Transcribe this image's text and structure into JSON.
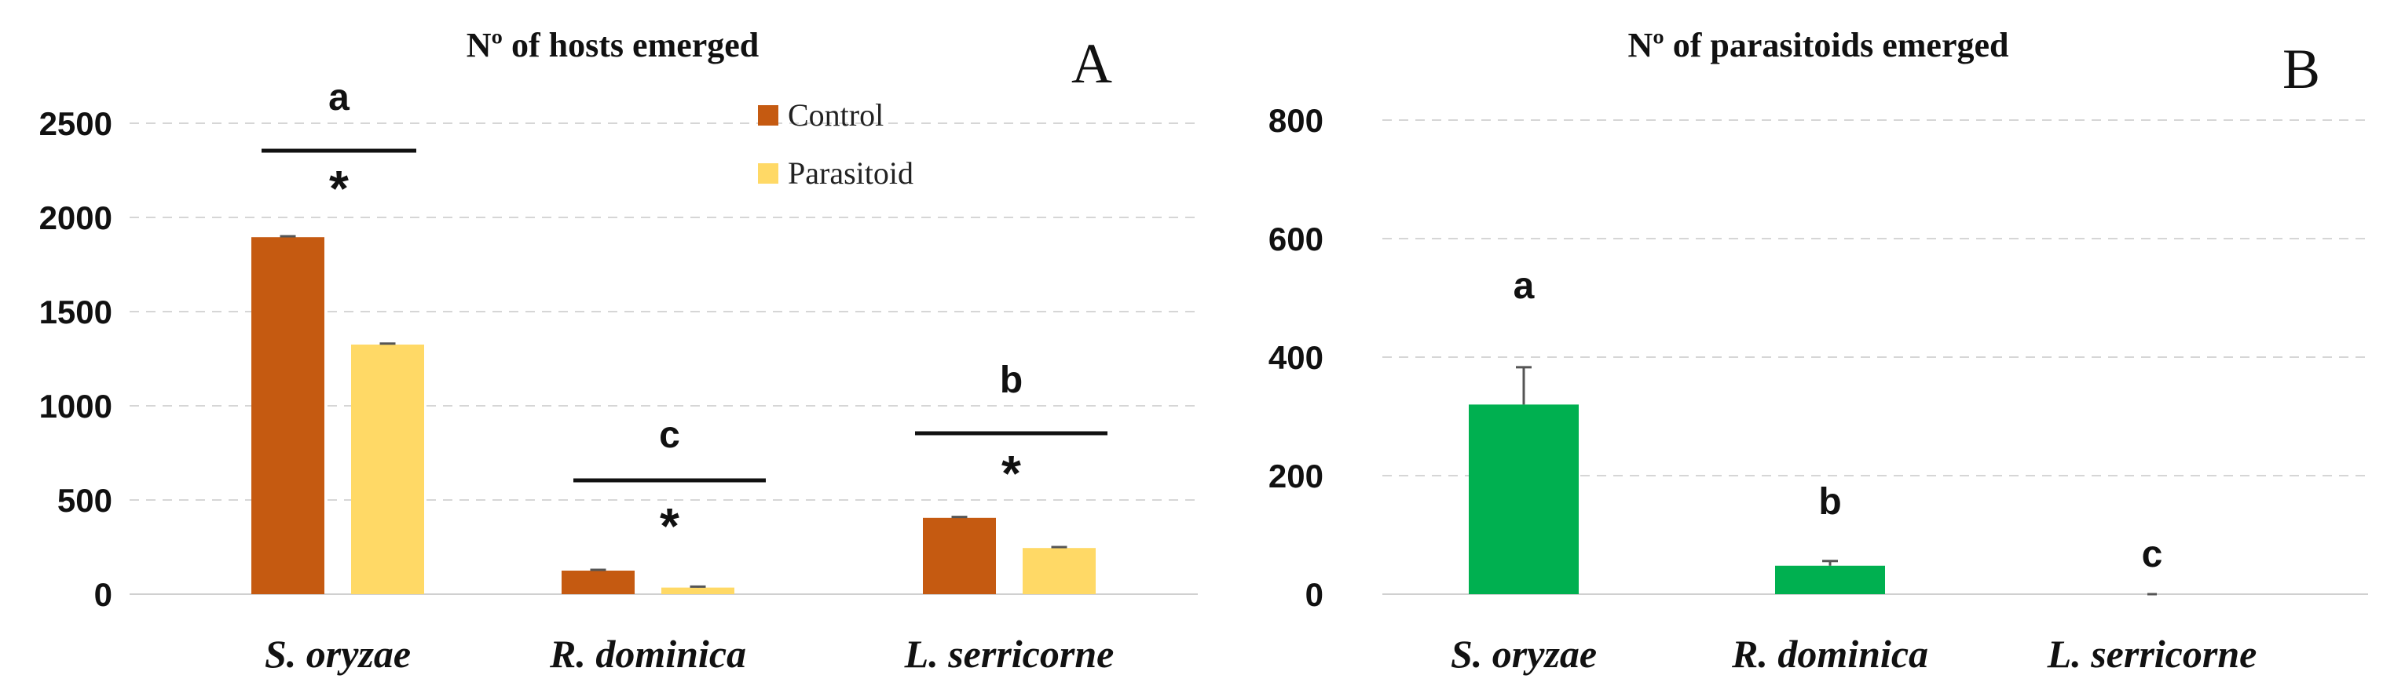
{
  "colors": {
    "control": "#C55A11",
    "parasitoid": "#FFD966",
    "emerged": "#00B050"
  },
  "chart_data": [
    {
      "type": "bar",
      "panel_label": "A",
      "title": "Nº of hosts emerged",
      "categories": [
        "S. oryzae",
        "R. dominica",
        "L. serricorne"
      ],
      "series": [
        {
          "name": "Control",
          "values": [
            1895,
            125,
            405
          ],
          "errors": [
            5,
            4,
            5
          ]
        },
        {
          "name": "Parasitoid",
          "values": [
            1325,
            35,
            245
          ],
          "errors": [
            5,
            5,
            5
          ]
        }
      ],
      "ylim": [
        0,
        2500
      ],
      "yticks": [
        "0",
        "500",
        "1000",
        "1500",
        "2000",
        "2500"
      ],
      "grid": true,
      "legend_position": "top-right",
      "letters": [
        "a",
        "c",
        "b"
      ],
      "significance": [
        "*",
        "*",
        "*"
      ]
    },
    {
      "type": "bar",
      "panel_label": "B",
      "title": "Nº of parasitoids emerged",
      "categories": [
        "S. oryzae",
        "R. dominica",
        "L. serricorne"
      ],
      "series": [
        {
          "name": "Parasitoids",
          "values": [
            320,
            48,
            0
          ],
          "errors": [
            63,
            8,
            0
          ]
        }
      ],
      "ylim": [
        0,
        800
      ],
      "yticks": [
        "0",
        "200",
        "400",
        "600",
        "800"
      ],
      "grid": true,
      "letters": [
        "a",
        "b",
        "c"
      ]
    }
  ]
}
